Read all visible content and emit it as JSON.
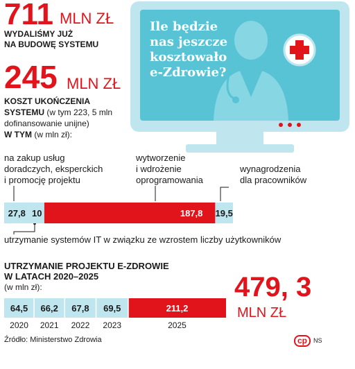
{
  "headline": {
    "total_value": "711",
    "total_unit": "MLN ZŁ",
    "total_caption_line1": "WYDALIŚMY JUŻ",
    "total_caption_line2": "NA BUDOWĘ SYSTEMU",
    "completion_value": "245",
    "completion_unit": "MLN ZŁ",
    "completion_caption_line1": "KOSZT UKOŃCZENIA",
    "completion_caption_line2_bold": "SYSTEMU",
    "completion_caption_line2_rest": " (w tym 223, 5 mln",
    "completion_caption_line3": "dofinansowanie unijne)",
    "in_that_bold": "W TYM",
    "in_that_rest": " (w mln zł):"
  },
  "monitor": {
    "question_line1": "Ile będzie",
    "question_line2": "nas jeszcze",
    "question_line3": "kosztowało",
    "question_line4": "e-Zdrowie?",
    "icon": "doctor-icon",
    "cross_icon": "medical-cross-icon",
    "colors": {
      "screen": "#59c3d6",
      "frame": "#bfe6ef",
      "accent": "#e2141b"
    }
  },
  "category_labels": {
    "consulting_line1": "na zakup usług",
    "consulting_line2": "doradczych, eksperckich",
    "consulting_line3": "i promocję projektu",
    "software_line1": "wytworzenie",
    "software_line2": "i wdrożenie",
    "software_line3": "oprogramowania",
    "salaries_line1": "wynagrodzenia",
    "salaries_line2": "dla pracowników",
    "maintenance": "utrzymanie systemów IT w związku ze wzrostem liczby użytkowników"
  },
  "section2": {
    "title_line1": "UTRZYMANIE PROJEKTU E-ZDROWIE",
    "title_line2": "W LATACH 2020–2025",
    "unit_note": "(w mln zł):",
    "total_value": "479, 3",
    "total_unit": "MLN ZŁ"
  },
  "footer": {
    "source": "Źródło: Ministerstwo Zdrowia",
    "logo_text": "cp",
    "author": "NS"
  },
  "chart_data": [
    {
      "type": "bar",
      "stacked": true,
      "orientation": "horizontal",
      "categories": [
        "na zakup usług doradczych, eksperckich i promocję projektu",
        "utrzymanie systemów IT w związku ze wzrostem liczby użytkowników",
        "wytworzenie i wdrożenie oprogramowania",
        "wynagrodzenia dla pracowników"
      ],
      "values": [
        27.8,
        10,
        187.8,
        19.5
      ],
      "value_labels": [
        "27,8",
        "10",
        "187,8",
        "19,5"
      ],
      "colors": [
        "#bfe6ef",
        "#bfe6ef",
        "#e2141b",
        "#bfe6ef"
      ]
    },
    {
      "type": "bar",
      "stacked": true,
      "orientation": "horizontal",
      "categories": [
        "2020",
        "2021",
        "2022",
        "2023",
        "2025"
      ],
      "values": [
        64.5,
        66.2,
        67.8,
        69.5,
        211.2
      ],
      "value_labels": [
        "64,5",
        "66,2",
        "67,8",
        "69,5",
        "211,2"
      ],
      "colors": [
        "#bfe6ef",
        "#bfe6ef",
        "#bfe6ef",
        "#bfe6ef",
        "#e2141b"
      ]
    }
  ]
}
